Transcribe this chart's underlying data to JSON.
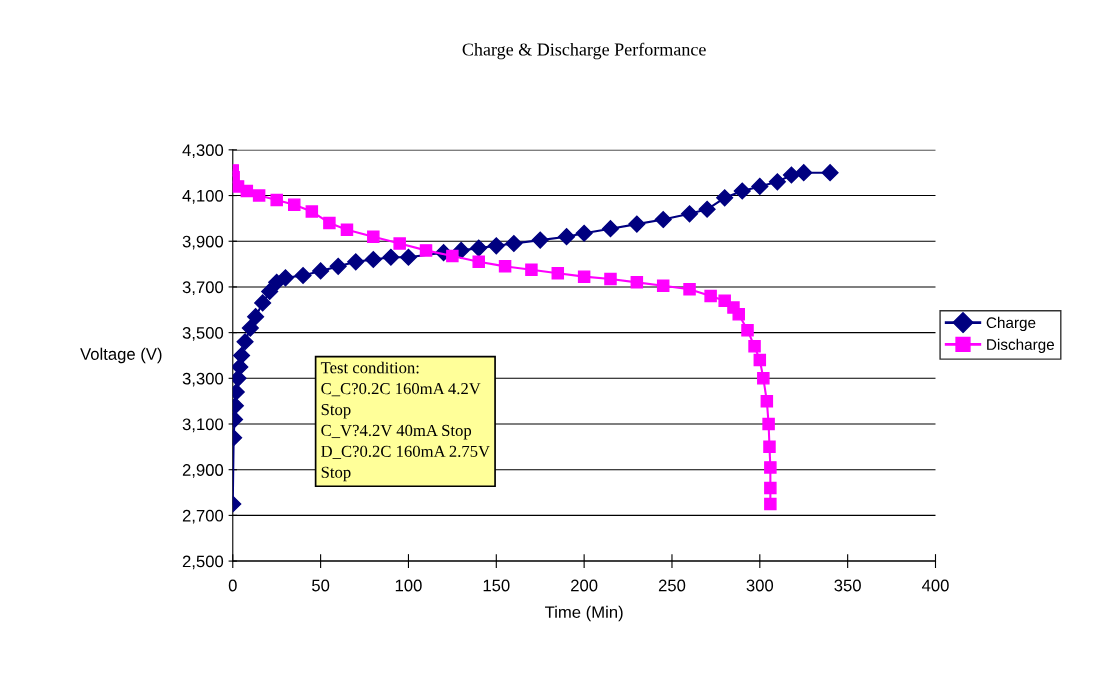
{
  "chart_data": {
    "type": "line",
    "title": "Charge & Discharge Performance",
    "xlabel": "Time (Min)",
    "ylabel": "Voltage (V)",
    "xlim": [
      0,
      400
    ],
    "xticks": [
      0,
      50,
      100,
      150,
      200,
      250,
      300,
      350,
      400
    ],
    "ylim": [
      2500,
      4300
    ],
    "yticks": [
      {
        "value": 2500,
        "label": "2,500"
      },
      {
        "value": 2700,
        "label": "2,700"
      },
      {
        "value": 2900,
        "label": "2,900"
      },
      {
        "value": 3100,
        "label": "3,100"
      },
      {
        "value": 3300,
        "label": "3,300"
      },
      {
        "value": 3500,
        "label": "3,500"
      },
      {
        "value": 3700,
        "label": "3,700"
      },
      {
        "value": 3900,
        "label": "3,900"
      },
      {
        "value": 4100,
        "label": "4,100"
      },
      {
        "value": 4300,
        "label": "4,300"
      }
    ],
    "grid": "y",
    "legend": "right",
    "annotations": [
      "Test condition:\nC_C?0.2C 160mA 4.2V\nStop\nC_V?4.2V 40mA Stop\nD_C?0.2C 160mA 2.75V\nStop"
    ],
    "series": [
      {
        "name": "Charge",
        "color": "#000080",
        "marker": "diamond",
        "x": [
          0,
          0.5,
          1,
          1.5,
          2,
          3,
          4,
          5,
          7,
          10,
          13,
          17,
          21,
          25,
          30,
          40,
          50,
          60,
          70,
          80,
          90,
          100,
          120,
          130,
          140,
          150,
          160,
          175,
          190,
          200,
          215,
          230,
          245,
          260,
          270,
          280,
          290,
          300,
          310,
          318,
          325,
          340
        ],
        "values": [
          2750,
          3040,
          3120,
          3180,
          3240,
          3300,
          3350,
          3400,
          3460,
          3520,
          3570,
          3630,
          3680,
          3720,
          3740,
          3750,
          3770,
          3790,
          3810,
          3820,
          3830,
          3830,
          3850,
          3860,
          3870,
          3880,
          3890,
          3905,
          3920,
          3935,
          3955,
          3975,
          3995,
          4020,
          4040,
          4090,
          4120,
          4140,
          4160,
          4190,
          4200,
          4200
        ]
      },
      {
        "name": "Discharge",
        "color": "#ff00ff",
        "marker": "square",
        "x": [
          0,
          0.5,
          3,
          8,
          15,
          25,
          35,
          45,
          55,
          65,
          80,
          95,
          110,
          125,
          140,
          155,
          170,
          185,
          200,
          215,
          230,
          245,
          260,
          272,
          280,
          285,
          288,
          293,
          297,
          300,
          302,
          304,
          305,
          305.5,
          306,
          306,
          306
        ],
        "values": [
          4210,
          4180,
          4140,
          4120,
          4100,
          4080,
          4060,
          4030,
          3980,
          3950,
          3920,
          3890,
          3860,
          3835,
          3810,
          3790,
          3775,
          3760,
          3745,
          3735,
          3720,
          3705,
          3690,
          3660,
          3640,
          3610,
          3580,
          3510,
          3440,
          3380,
          3300,
          3200,
          3100,
          3000,
          2910,
          2820,
          2750
        ]
      }
    ]
  }
}
